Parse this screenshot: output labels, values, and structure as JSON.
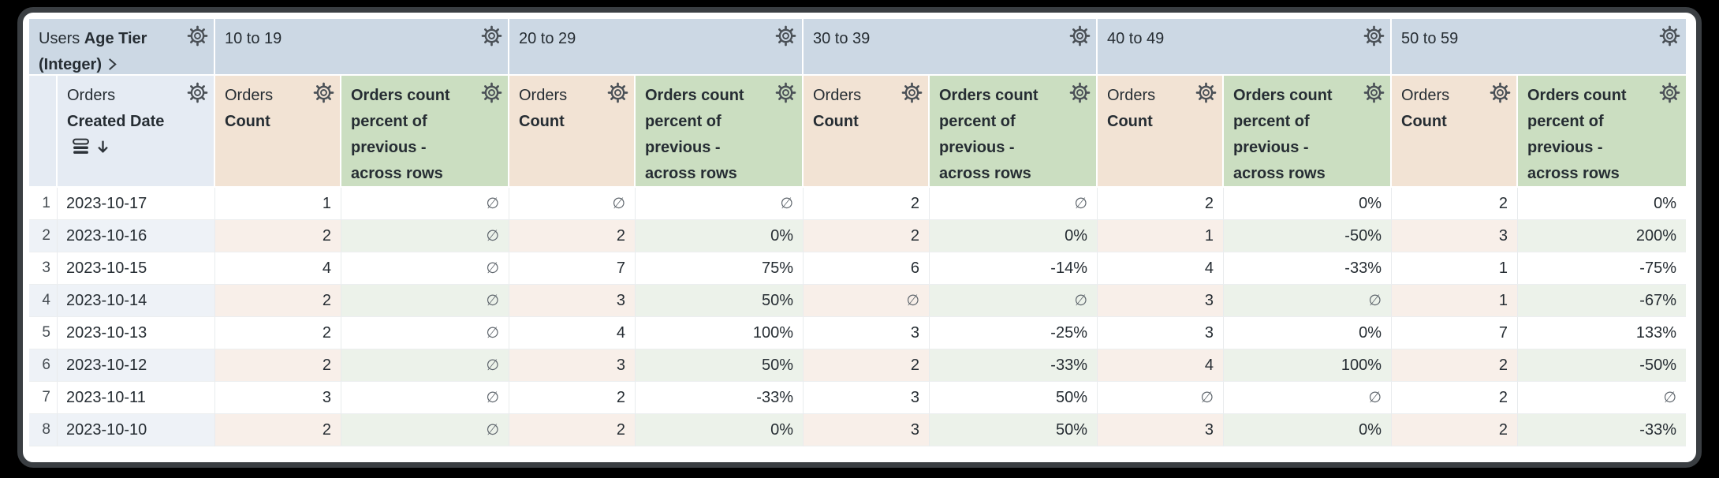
{
  "table": {
    "null_symbol": "∅",
    "header": {
      "corner": {
        "view": "Users",
        "field": "Age Tier (Integer)"
      },
      "row_field": {
        "view": "Orders",
        "field": "Created Date",
        "sort": "descending"
      },
      "pivots": [
        "10 to 19",
        "20 to 29",
        "30 to 39",
        "40 to 49",
        "50 to 59"
      ],
      "measure_count": {
        "view": "Orders",
        "field": "Count"
      },
      "measure_percent": {
        "name": "Orders count percent of previous - across rows"
      }
    },
    "rows": [
      {
        "n": "1",
        "date": "2023-10-17",
        "values": [
          "1",
          "∅",
          "∅",
          "∅",
          "2",
          "∅",
          "2",
          "0%",
          "2",
          "0%"
        ]
      },
      {
        "n": "2",
        "date": "2023-10-16",
        "values": [
          "2",
          "∅",
          "2",
          "0%",
          "2",
          "0%",
          "1",
          "-50%",
          "3",
          "200%"
        ]
      },
      {
        "n": "3",
        "date": "2023-10-15",
        "values": [
          "4",
          "∅",
          "7",
          "75%",
          "6",
          "-14%",
          "4",
          "-33%",
          "1",
          "-75%"
        ]
      },
      {
        "n": "4",
        "date": "2023-10-14",
        "values": [
          "2",
          "∅",
          "3",
          "50%",
          "∅",
          "∅",
          "3",
          "∅",
          "1",
          "-67%"
        ]
      },
      {
        "n": "5",
        "date": "2023-10-13",
        "values": [
          "2",
          "∅",
          "4",
          "100%",
          "3",
          "-25%",
          "3",
          "0%",
          "7",
          "133%"
        ]
      },
      {
        "n": "6",
        "date": "2023-10-12",
        "values": [
          "2",
          "∅",
          "3",
          "50%",
          "2",
          "-33%",
          "4",
          "100%",
          "2",
          "-50%"
        ]
      },
      {
        "n": "7",
        "date": "2023-10-11",
        "values": [
          "3",
          "∅",
          "2",
          "-33%",
          "3",
          "50%",
          "∅",
          "∅",
          "2",
          "∅"
        ]
      },
      {
        "n": "8",
        "date": "2023-10-10",
        "values": [
          "2",
          "∅",
          "2",
          "0%",
          "3",
          "50%",
          "3",
          "0%",
          "2",
          "-33%"
        ]
      }
    ],
    "colors": {
      "pivot_header_bg": "#ccd8e4",
      "row_header_bg": "#e5ebf3",
      "count_header_bg": "#f2e3d4",
      "percent_header_bg": "#cbdec1",
      "alt_row_blue": "#eef2f7",
      "alt_row_tan": "#f8efe9",
      "alt_row_green": "#ecf2ea",
      "text": "#262d33"
    }
  }
}
